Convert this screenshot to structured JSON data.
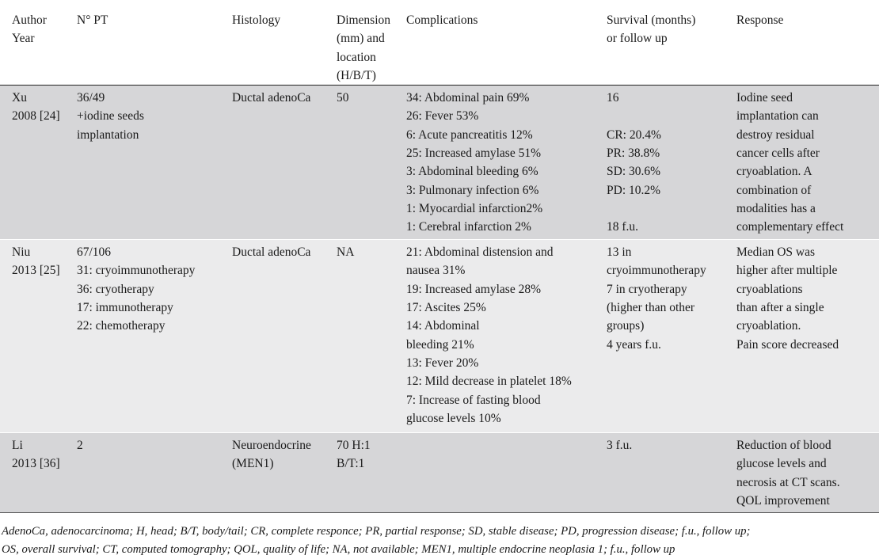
{
  "header": {
    "author": [
      "Author",
      "Year"
    ],
    "npt": [
      "N° PT"
    ],
    "histology": [
      "Histology"
    ],
    "dimension": [
      "Dimension",
      "(mm) and",
      "location",
      "(H/B/T)"
    ],
    "complications": [
      "Complications"
    ],
    "survival": [
      "Survival (months)",
      "or follow up"
    ],
    "response": [
      "Response"
    ]
  },
  "rows": [
    {
      "author": [
        "Xu",
        "2008 [24]"
      ],
      "npt": [
        "36/49",
        "+iodine seeds",
        "implantation"
      ],
      "histology": [
        "Ductal adenoCa"
      ],
      "dimension": [
        "50"
      ],
      "complications": [
        "34: Abdominal pain 69%",
        "26: Fever 53%",
        "6: Acute pancreatitis 12%",
        "25: Increased amylase 51%",
        "3: Abdominal bleeding 6%",
        "3: Pulmonary infection 6%",
        "1: Myocardial infarction2%",
        "1: Cerebral infarction 2%"
      ],
      "survival": [
        "16",
        "",
        "CR: 20.4%",
        "PR: 38.8%",
        "SD: 30.6%",
        "PD: 10.2%",
        "",
        "18 f.u."
      ],
      "response": [
        "Iodine seed",
        "implantation can",
        "destroy residual",
        "cancer cells after",
        "cryoablation. A",
        "combination of",
        "modalities has a",
        "complementary effect"
      ]
    },
    {
      "author": [
        "Niu",
        "2013 [25]"
      ],
      "npt": [
        "67/106",
        "31: cryoimmunotherapy",
        "36: cryotherapy",
        "17: immunotherapy",
        "22: chemotherapy"
      ],
      "histology": [
        "Ductal adenoCa"
      ],
      "dimension": [
        "NA"
      ],
      "complications": [
        "21: Abdominal distension and",
        "nausea 31%",
        "19: Increased amylase 28%",
        "17: Ascites 25%",
        "14: Abdominal",
        "bleeding 21%",
        "13: Fever 20%",
        "12: Mild decrease in platelet 18%",
        "7: Increase of fasting blood",
        "glucose levels 10%"
      ],
      "survival": [
        "13 in",
        "cryoimmunotherapy",
        "7 in cryotherapy",
        "(higher than other",
        "groups)",
        "4 years f.u."
      ],
      "response": [
        "Median OS was",
        "higher after multiple",
        "cryoablations",
        "than after a single",
        "cryoablation.",
        "Pain score decreased"
      ]
    },
    {
      "author": [
        "Li",
        "2013 [36]"
      ],
      "npt": [
        "2"
      ],
      "histology": [
        "Neuroendocrine",
        "(MEN1)"
      ],
      "dimension": [
        " 70 H:1",
        "B/T:1"
      ],
      "complications": [],
      "survival": [
        "3 f.u."
      ],
      "response": [
        "Reduction of blood",
        "glucose levels and",
        "necrosis at CT scans.",
        "QOL improvement"
      ]
    }
  ],
  "footnote": [
    "AdenoCa, adenocarcinoma; H, head; B/T, body/tail; CR, complete responce; PR,  partial response; SD, stable disease; PD, progression disease; f.u., follow up;",
    "OS, overall survival; CT,  computed tomography; QOL, quality of life; NA, not available; MEN1, multiple endocrine neoplasia 1; f.u., follow up"
  ]
}
